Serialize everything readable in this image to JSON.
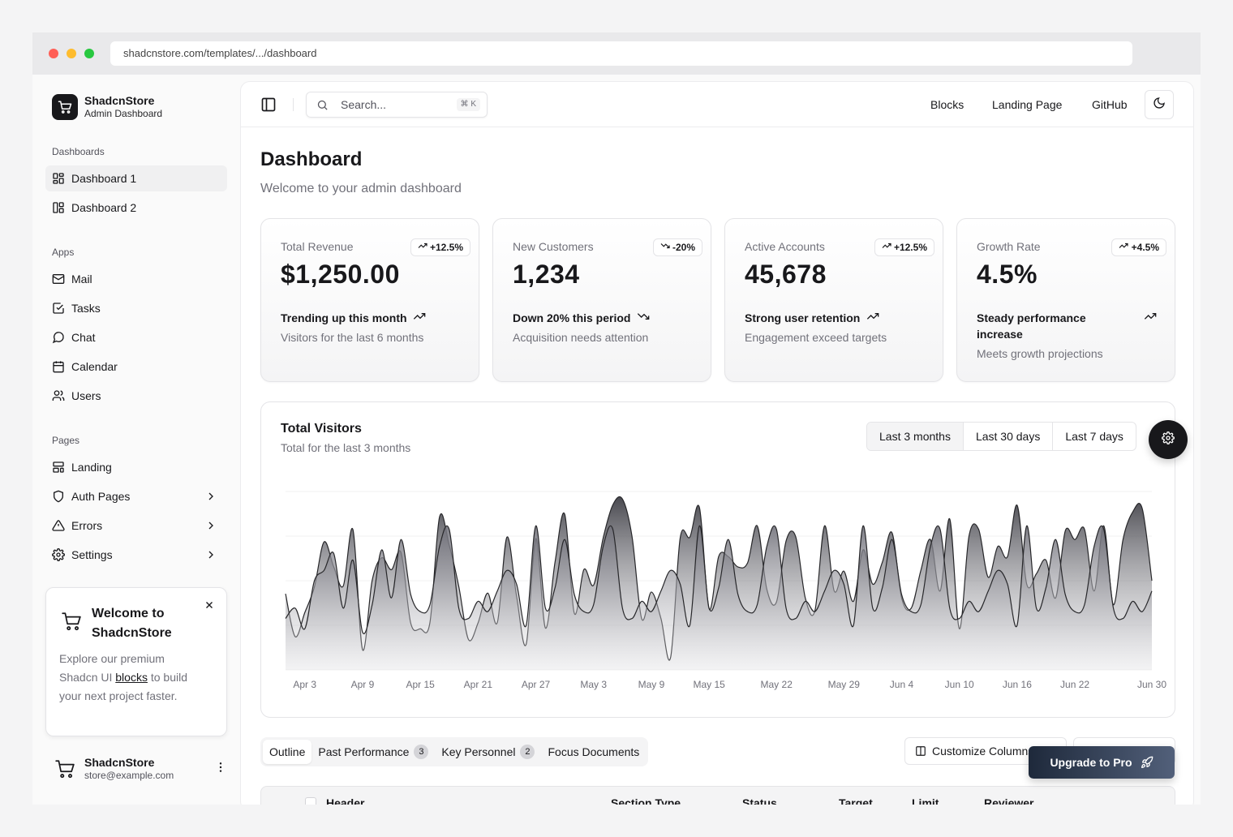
{
  "browser": {
    "url": "shadcnstore.com/templates/.../dashboard",
    "dots": [
      "#ff5f57",
      "#febc2e",
      "#28c840"
    ]
  },
  "brand": {
    "name": "ShadcnStore",
    "subtitle": "Admin Dashboard",
    "icon": "cart-icon"
  },
  "sidebar": {
    "groups": [
      {
        "label": "Dashboards",
        "items": [
          {
            "label": "Dashboard 1",
            "icon": "layout-dashboard-icon",
            "active": true,
            "chevron": false
          },
          {
            "label": "Dashboard 2",
            "icon": "layout-panels-icon",
            "active": false,
            "chevron": false
          }
        ]
      },
      {
        "label": "Apps",
        "items": [
          {
            "label": "Mail",
            "icon": "mail-icon",
            "chevron": false
          },
          {
            "label": "Tasks",
            "icon": "check-square-icon",
            "chevron": false
          },
          {
            "label": "Chat",
            "icon": "message-circle-icon",
            "chevron": false
          },
          {
            "label": "Calendar",
            "icon": "calendar-icon",
            "chevron": false
          },
          {
            "label": "Users",
            "icon": "users-icon",
            "chevron": false
          }
        ]
      },
      {
        "label": "Pages",
        "items": [
          {
            "label": "Landing",
            "icon": "layout-template-icon",
            "chevron": false
          },
          {
            "label": "Auth Pages",
            "icon": "shield-icon",
            "chevron": true
          },
          {
            "label": "Errors",
            "icon": "alert-triangle-icon",
            "chevron": true
          },
          {
            "label": "Settings",
            "icon": "gear-icon",
            "chevron": true
          }
        ]
      }
    ]
  },
  "promo": {
    "title": "Welcome to ShadcnStore",
    "body_before": "Explore our premium Shadcn UI ",
    "link": "blocks",
    "body_after": " to build your next project faster."
  },
  "user": {
    "name": "ShadcnStore",
    "email": "store@example.com"
  },
  "topbar": {
    "search_placeholder": "Search...",
    "shortcut": "⌘ K",
    "links": [
      "Blocks",
      "Landing Page",
      "GitHub"
    ]
  },
  "page": {
    "title": "Dashboard",
    "subtitle": "Welcome to your admin dashboard"
  },
  "stats": [
    {
      "label": "Total Revenue",
      "badge": "+12.5%",
      "badge_dir": "up",
      "value": "$1,250.00",
      "trend": "Trending up this month",
      "trend_dir": "up",
      "desc": "Visitors for the last 6 months"
    },
    {
      "label": "New Customers",
      "badge": "-20%",
      "badge_dir": "down",
      "value": "1,234",
      "trend": "Down 20% this period",
      "trend_dir": "down",
      "desc": "Acquisition needs attention"
    },
    {
      "label": "Active Accounts",
      "badge": "+12.5%",
      "badge_dir": "up",
      "value": "45,678",
      "trend": "Strong user retention",
      "trend_dir": "up",
      "desc": "Engagement exceed targets"
    },
    {
      "label": "Growth Rate",
      "badge": "+4.5%",
      "badge_dir": "up",
      "value": "4.5%",
      "trend": "Steady performance increase",
      "trend_dir": "up",
      "desc": "Meets growth projections"
    }
  ],
  "visitors": {
    "title": "Total Visitors",
    "subtitle": "Total for the last 3 months",
    "ranges": [
      "Last 3 months",
      "Last 30 days",
      "Last 7 days"
    ],
    "selected_range": "Last 3 months"
  },
  "chart_data": {
    "type": "area",
    "x_ticks": [
      "Apr 3",
      "Apr 9",
      "Apr 15",
      "Apr 21",
      "Apr 27",
      "May 3",
      "May 9",
      "May 15",
      "May 22",
      "May 29",
      "Jun 4",
      "Jun 10",
      "Jun 16",
      "Jun 22",
      "Jun 30"
    ],
    "start": "2024-04-01",
    "end": "2024-06-30",
    "grid": true,
    "series": [
      {
        "values": [
          222,
          97,
          167,
          242,
          373,
          301,
          245,
          409,
          59,
          261,
          327,
          292,
          342,
          137,
          120,
          138,
          446,
          364,
          243,
          89,
          137,
          224,
          138,
          387,
          215,
          75,
          383,
          122,
          315,
          454,
          165,
          293,
          247,
          385,
          481,
          498,
          388,
          149,
          227,
          150,
          36,
          385,
          387,
          473,
          178,
          331,
          330,
          300,
          312,
          420,
          235,
          198,
          376,
          388,
          209,
          173,
          420,
          230,
          288,
          200,
          350,
          250,
          314,
          400,
          210,
          180,
          290,
          380,
          230,
          440,
          120,
          390,
          410,
          270,
          360,
          330,
          480,
          250,
          280,
          320,
          210,
          405,
          380,
          410,
          230,
          420,
          190,
          380,
          460,
          470,
          260
        ]
      },
      {
        "values": [
          150,
          180,
          120,
          260,
          290,
          340,
          180,
          320,
          110,
          190,
          350,
          210,
          380,
          220,
          170,
          190,
          360,
          410,
          180,
          150,
          200,
          170,
          230,
          290,
          250,
          130,
          420,
          180,
          240,
          380,
          220,
          170,
          190,
          360,
          410,
          180,
          150,
          200,
          170,
          230,
          290,
          250,
          130,
          420,
          180,
          240,
          380,
          220,
          170,
          190,
          360,
          410,
          180,
          150,
          200,
          170,
          230,
          290,
          250,
          130,
          420,
          180,
          240,
          380,
          220,
          170,
          190,
          360,
          410,
          180,
          150,
          200,
          170,
          230,
          290,
          250,
          130,
          420,
          180,
          240,
          380,
          220,
          170,
          190,
          360,
          410,
          180,
          150,
          200,
          170,
          230
        ]
      }
    ]
  },
  "table_tabs": [
    {
      "label": "Outline",
      "count": "",
      "active": true
    },
    {
      "label": "Past Performance",
      "count": "3",
      "active": false
    },
    {
      "label": "Key Personnel",
      "count": "2",
      "active": false
    },
    {
      "label": "Focus Documents",
      "count": "",
      "active": false
    }
  ],
  "customize_label": "Customize Columns",
  "upgrade_label": "Upgrade to Pro",
  "table_columns": [
    "Header",
    "Section Type",
    "Status",
    "Target",
    "Limit",
    "Reviewer"
  ]
}
